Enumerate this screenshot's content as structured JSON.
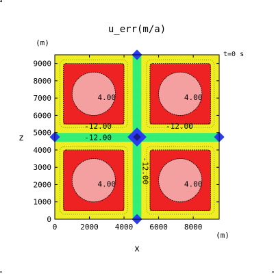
{
  "chart_data": {
    "type": "heatmap",
    "title": "u_err(m/a)",
    "xlabel": "x",
    "ylabel": "z",
    "x_unit": "(m)",
    "y_unit": "(m)",
    "time_label": "t=0  s",
    "xlim": [
      0,
      9500
    ],
    "ylim": [
      0,
      9500
    ],
    "xticks": [
      0,
      2000,
      4000,
      6000,
      8000
    ],
    "yticks": [
      0,
      1000,
      2000,
      3000,
      4000,
      5000,
      6000,
      7000,
      8000,
      9000
    ],
    "cell_size_m": 500,
    "colors": {
      "red": "#ee2222",
      "pink": "#f4a0a0",
      "green": "#33ee77",
      "yellow": "#eeee22",
      "cyan": "#22e6e6",
      "blue": "#2a3cf0",
      "navy": "#1a1a8a"
    },
    "regions": [
      {
        "name": "top-left block",
        "x": [
          500,
          4000
        ],
        "z": [
          5500,
          9000
        ],
        "color": "red"
      },
      {
        "name": "top-right block",
        "x": [
          5500,
          9000
        ],
        "z": [
          5500,
          9000
        ],
        "color": "red"
      },
      {
        "name": "bottom-left block",
        "x": [
          500,
          4000
        ],
        "z": [
          500,
          4000
        ],
        "color": "red"
      },
      {
        "name": "bottom-right block",
        "x": [
          5500,
          9000
        ],
        "z": [
          500,
          4000
        ],
        "color": "red"
      }
    ],
    "contour_labels": [
      {
        "text": "4.00",
        "x": 3000,
        "z": 7000
      },
      {
        "text": "4.00",
        "x": 8000,
        "z": 7000
      },
      {
        "text": "4.00",
        "x": 3000,
        "z": 2000
      },
      {
        "text": "4.00",
        "x": 8000,
        "z": 2000
      },
      {
        "text": "-12.00",
        "x": 2500,
        "z": 5350
      },
      {
        "text": "-12.00",
        "x": 2500,
        "z": 4700
      },
      {
        "text": "-12.00",
        "x": 7200,
        "z": 5350
      },
      {
        "text": "-12.00",
        "x": 5200,
        "z": 2800,
        "rotated": true
      }
    ]
  }
}
